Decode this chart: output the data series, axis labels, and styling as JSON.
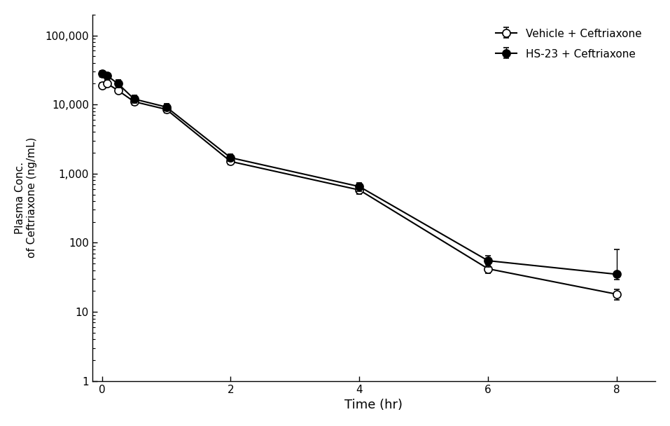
{
  "vehicle_time": [
    0,
    0.083,
    0.25,
    0.5,
    1,
    2,
    4,
    6,
    8
  ],
  "vehicle_conc": [
    19000,
    20000,
    16000,
    11000,
    8500,
    1500,
    580,
    42,
    18
  ],
  "vehicle_sd_low": [
    1500,
    2000,
    1500,
    1200,
    1000,
    150,
    70,
    6,
    3
  ],
  "vehicle_sd_high": [
    1500,
    2000,
    1500,
    1200,
    1000,
    150,
    70,
    6,
    3
  ],
  "hs23_time": [
    0,
    0.083,
    0.25,
    0.5,
    1,
    2,
    4,
    6,
    8
  ],
  "hs23_conc": [
    28000,
    26000,
    20000,
    12000,
    9200,
    1700,
    650,
    55,
    35
  ],
  "hs23_sd_low": [
    3000,
    3000,
    2500,
    1500,
    1000,
    200,
    90,
    10,
    6
  ],
  "hs23_sd_high": [
    3000,
    3000,
    2500,
    1500,
    1000,
    200,
    90,
    10,
    45
  ],
  "xlabel": "Time (hr)",
  "ylabel_line1": "Plasma Conc.",
  "ylabel_line2": "of Ceftriaxone (ng/mL)",
  "legend_vehicle": "Vehicle + Ceftriaxone",
  "legend_hs23": "HS-23 + Ceftriaxone",
  "xlim": [
    -0.15,
    8.6
  ],
  "ylim": [
    1,
    200000
  ],
  "xticks": [
    0,
    2,
    4,
    6,
    8
  ],
  "background_color": "#ffffff",
  "line_color": "#000000",
  "marker_size": 8,
  "linewidth": 1.5,
  "capsize": 3,
  "elinewidth": 1.0
}
